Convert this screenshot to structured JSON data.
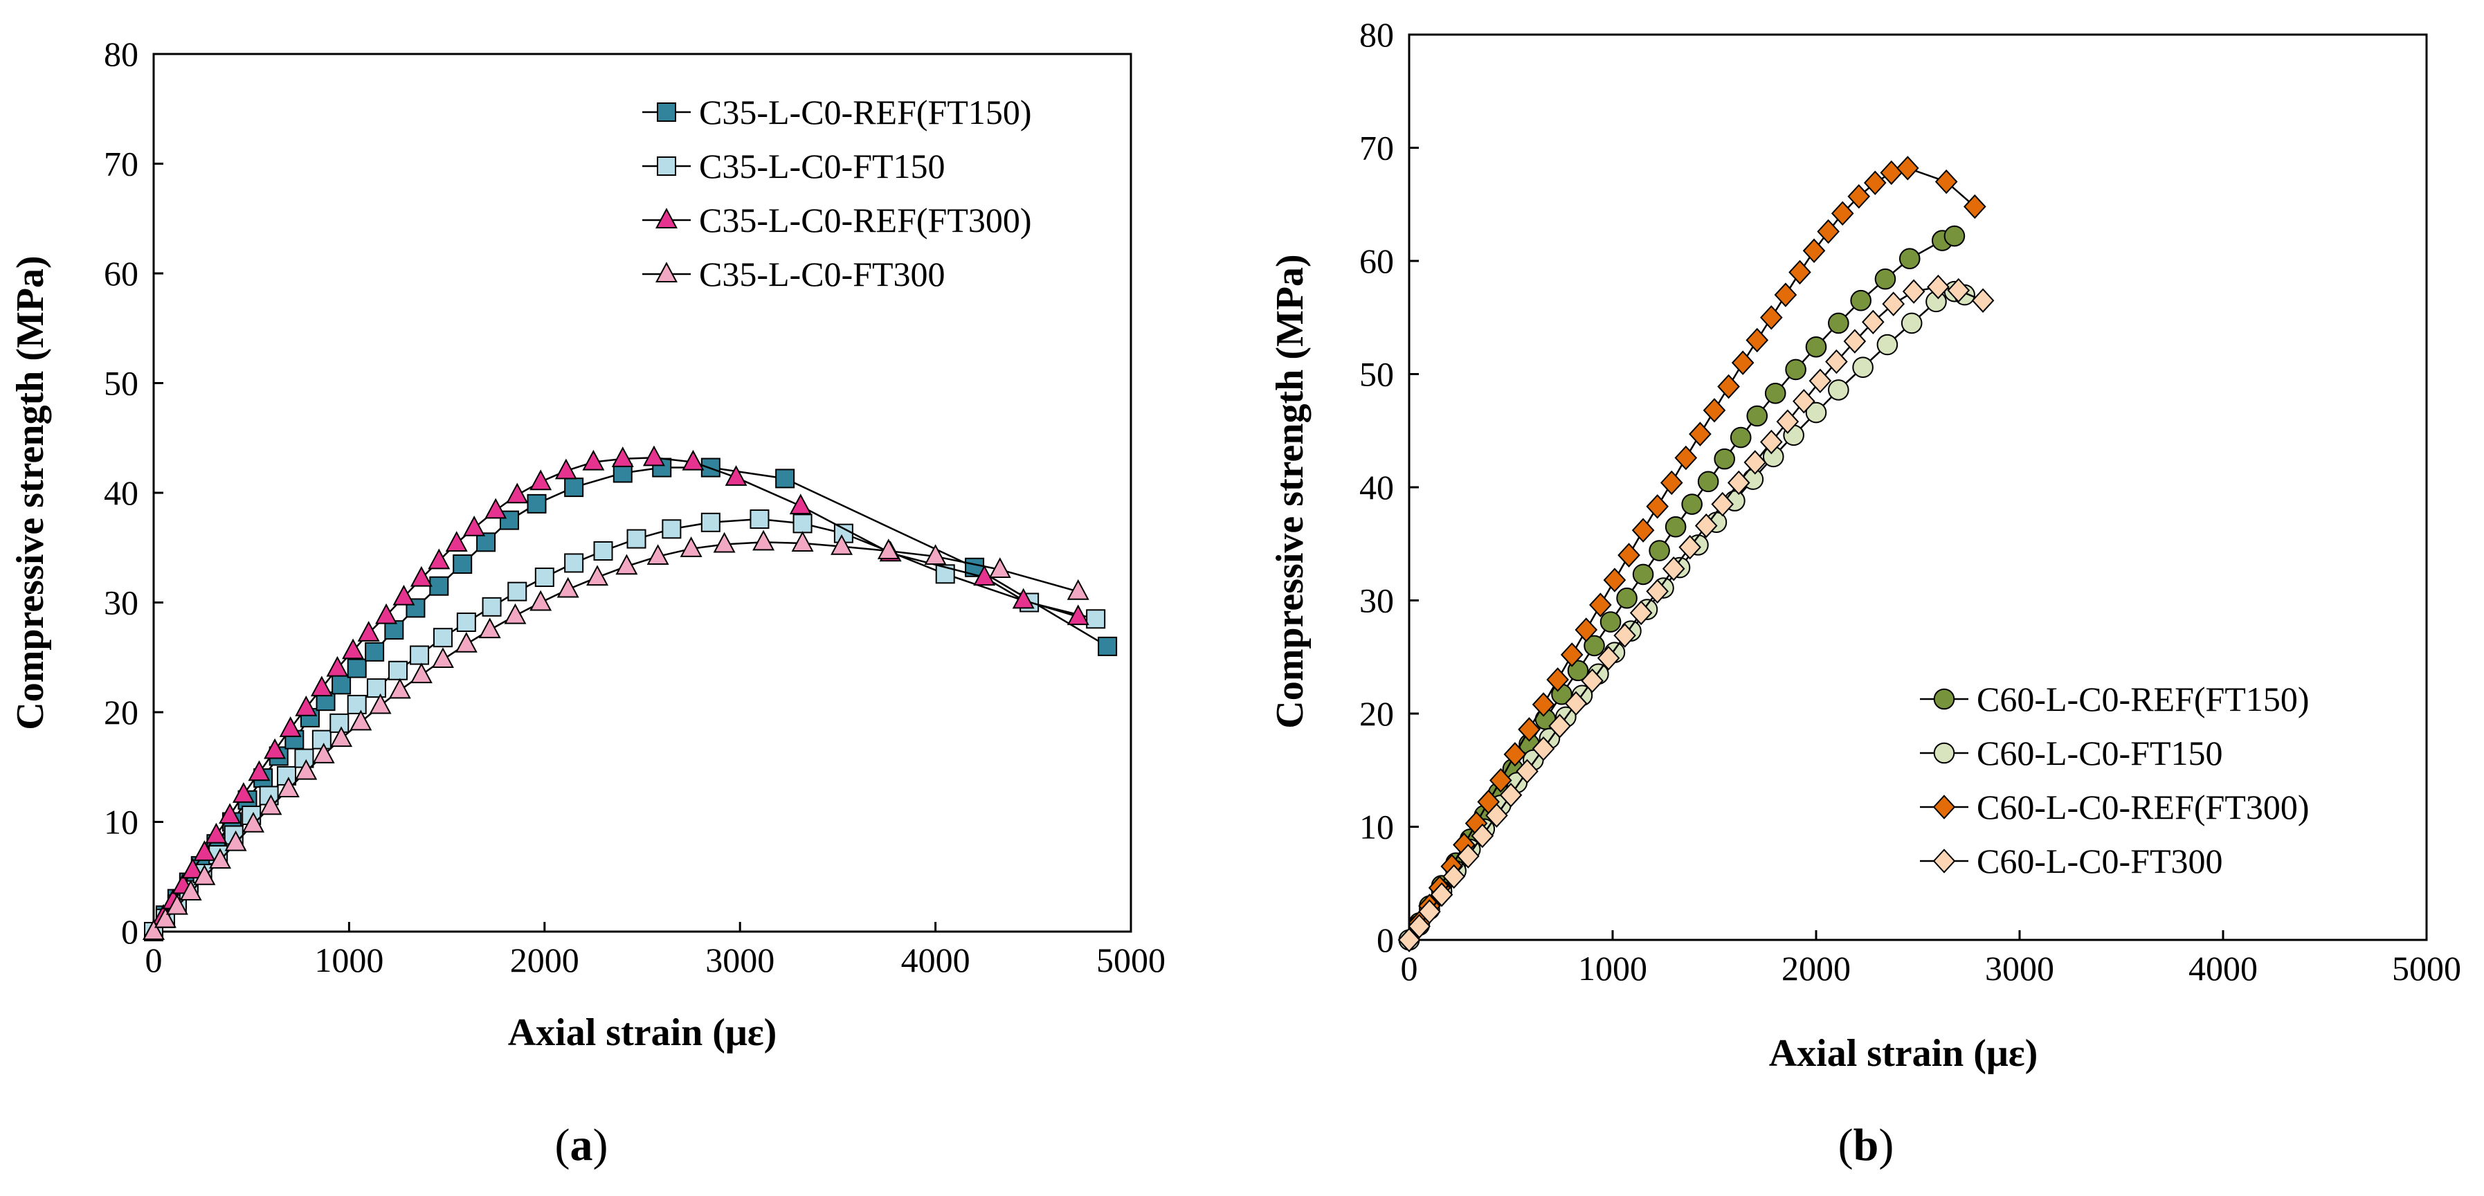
{
  "chart_data": [
    {
      "type": "line",
      "panel": "a",
      "caption_letter": "a",
      "xlabel": "Axial strain (με)",
      "ylabel": "Compressive strength (MPa)",
      "xlim": [
        0,
        5000
      ],
      "ylim": [
        0,
        80
      ],
      "xticks": [
        0,
        1000,
        2000,
        3000,
        4000,
        5000
      ],
      "yticks": [
        0,
        10,
        20,
        30,
        40,
        50,
        60,
        70,
        80
      ],
      "grid": false,
      "legend_position": "top-right",
      "series": [
        {
          "name": "C35-L-C0-REF(FT150)",
          "marker": "square",
          "color": "#31849B",
          "x": [
            0,
            60,
            120,
            180,
            240,
            320,
            400,
            480,
            560,
            640,
            720,
            800,
            880,
            960,
            1040,
            1130,
            1230,
            1340,
            1460,
            1580,
            1700,
            1820,
            1960,
            2150,
            2400,
            2600,
            2850,
            3230,
            4200,
            4880
          ],
          "y": [
            0,
            1.5,
            3.0,
            4.5,
            6.0,
            8.0,
            10.0,
            12.0,
            14.0,
            16.0,
            17.5,
            19.5,
            21.0,
            22.5,
            24.0,
            25.5,
            27.5,
            29.5,
            31.5,
            33.5,
            35.5,
            37.5,
            39.0,
            40.5,
            41.8,
            42.3,
            42.3,
            41.3,
            33.2,
            26.0
          ]
        },
        {
          "name": "C35-L-C0-FT150",
          "marker": "square",
          "color": "#B7DEE8",
          "x": [
            0,
            60,
            120,
            180,
            250,
            330,
            410,
            500,
            590,
            680,
            770,
            860,
            950,
            1040,
            1140,
            1250,
            1360,
            1480,
            1600,
            1730,
            1860,
            2000,
            2150,
            2300,
            2470,
            2650,
            2850,
            3100,
            3320,
            3530,
            4050,
            4480,
            4820
          ],
          "y": [
            0,
            1.2,
            2.5,
            3.8,
            5.3,
            7.0,
            8.8,
            10.6,
            12.4,
            14.2,
            15.8,
            17.5,
            19.0,
            20.7,
            22.2,
            23.8,
            25.2,
            26.8,
            28.2,
            29.6,
            31.0,
            32.3,
            33.6,
            34.7,
            35.8,
            36.7,
            37.3,
            37.6,
            37.2,
            36.3,
            32.6,
            30.0,
            28.5
          ]
        },
        {
          "name": "C35-L-C0-REF(FT300)",
          "marker": "triangle",
          "color": "#E6338F",
          "x": [
            0,
            50,
            100,
            150,
            200,
            260,
            320,
            390,
            460,
            540,
            620,
            700,
            780,
            860,
            940,
            1020,
            1100,
            1190,
            1280,
            1370,
            1460,
            1550,
            1640,
            1750,
            1860,
            1980,
            2110,
            2250,
            2400,
            2560,
            2760,
            2980,
            3310,
            3770,
            4250,
            4450,
            4730
          ],
          "y": [
            0,
            1.4,
            2.8,
            4.2,
            5.6,
            7.2,
            8.8,
            10.6,
            12.5,
            14.5,
            16.5,
            18.5,
            20.4,
            22.2,
            24.0,
            25.6,
            27.2,
            28.8,
            30.5,
            32.2,
            33.8,
            35.4,
            36.8,
            38.4,
            39.8,
            41.0,
            42.0,
            42.8,
            43.1,
            43.2,
            42.8,
            41.4,
            38.8,
            34.5,
            32.3,
            30.2,
            28.7
          ]
        },
        {
          "name": "C35-L-C0-FT300",
          "marker": "triangle",
          "color": "#F2A7C3",
          "x": [
            0,
            60,
            120,
            190,
            260,
            340,
            420,
            510,
            600,
            690,
            780,
            870,
            960,
            1060,
            1160,
            1260,
            1370,
            1480,
            1600,
            1720,
            1850,
            1980,
            2120,
            2270,
            2420,
            2580,
            2750,
            2920,
            3120,
            3320,
            3520,
            3760,
            4000,
            4330,
            4730
          ],
          "y": [
            0,
            1.1,
            2.3,
            3.6,
            5.0,
            6.5,
            8.1,
            9.8,
            11.4,
            13.0,
            14.6,
            16.1,
            17.6,
            19.1,
            20.6,
            22.0,
            23.4,
            24.8,
            26.2,
            27.5,
            28.8,
            30.0,
            31.2,
            32.3,
            33.3,
            34.2,
            34.9,
            35.3,
            35.5,
            35.4,
            35.1,
            34.7,
            34.2,
            33.0,
            31.0
          ]
        }
      ]
    },
    {
      "type": "line",
      "panel": "b",
      "caption_letter": "b",
      "xlabel": "Axial strain (με)",
      "ylabel": "Compressive strength (MPa)",
      "xlim": [
        0,
        5000
      ],
      "ylim": [
        0,
        80
      ],
      "xticks": [
        0,
        1000,
        2000,
        3000,
        4000,
        5000
      ],
      "yticks": [
        0,
        10,
        20,
        30,
        40,
        50,
        60,
        70,
        80
      ],
      "grid": false,
      "legend_position": "bottom-right",
      "series": [
        {
          "name": "C60-L-C0-REF(FT150)",
          "marker": "circle",
          "color": "#77933C",
          "x": [
            0,
            50,
            100,
            160,
            230,
            300,
            370,
            440,
            510,
            590,
            670,
            750,
            830,
            910,
            990,
            1070,
            1150,
            1230,
            1310,
            1390,
            1470,
            1550,
            1630,
            1710,
            1800,
            1900,
            2000,
            2110,
            2220,
            2340,
            2460,
            2620,
            2680
          ],
          "y": [
            0,
            1.5,
            3.0,
            4.8,
            6.8,
            8.9,
            11.0,
            13.0,
            15.1,
            17.3,
            19.5,
            21.7,
            23.8,
            26.0,
            28.1,
            30.2,
            32.3,
            34.4,
            36.5,
            38.5,
            40.5,
            42.5,
            44.4,
            46.3,
            48.3,
            50.4,
            52.4,
            54.5,
            56.5,
            58.4,
            60.2,
            61.8,
            62.2
          ]
        },
        {
          "name": "C60-L-C0-FT150",
          "marker": "circle",
          "color": "#D7E4BD",
          "x": [
            0,
            50,
            100,
            160,
            230,
            300,
            370,
            450,
            530,
            610,
            690,
            770,
            850,
            930,
            1010,
            1090,
            1170,
            1250,
            1330,
            1420,
            1510,
            1600,
            1690,
            1790,
            1890,
            2000,
            2110,
            2230,
            2350,
            2470,
            2590,
            2680,
            2730
          ],
          "y": [
            0,
            1.3,
            2.7,
            4.3,
            6.1,
            8.0,
            9.8,
            11.9,
            13.9,
            15.9,
            17.8,
            19.7,
            21.6,
            23.5,
            25.4,
            27.3,
            29.2,
            31.1,
            32.9,
            34.9,
            36.9,
            38.8,
            40.7,
            42.7,
            44.6,
            46.6,
            48.6,
            50.6,
            52.6,
            54.5,
            56.4,
            57.3,
            57.0
          ]
        },
        {
          "name": "C60-L-C0-REF(FT300)",
          "marker": "diamond",
          "color": "#E36C09",
          "x": [
            0,
            50,
            100,
            150,
            210,
            270,
            330,
            390,
            450,
            520,
            590,
            660,
            730,
            800,
            870,
            940,
            1010,
            1080,
            1150,
            1220,
            1290,
            1360,
            1430,
            1500,
            1570,
            1640,
            1710,
            1780,
            1850,
            1920,
            1990,
            2060,
            2130,
            2210,
            2290,
            2370,
            2450,
            2640,
            2780
          ],
          "y": [
            0,
            1.5,
            3.0,
            4.6,
            6.5,
            8.4,
            10.3,
            12.2,
            14.1,
            16.4,
            18.6,
            20.8,
            23.0,
            25.2,
            27.4,
            29.6,
            31.8,
            34.0,
            36.2,
            38.3,
            40.4,
            42.6,
            44.7,
            46.8,
            48.9,
            51.0,
            53.0,
            55.0,
            57.0,
            59.0,
            60.9,
            62.6,
            64.2,
            65.7,
            66.9,
            67.8,
            68.2,
            67.0,
            64.8
          ]
        },
        {
          "name": "C60-L-C0-FT300",
          "marker": "diamond",
          "color": "#FCD5B5",
          "x": [
            0,
            50,
            100,
            160,
            220,
            290,
            360,
            430,
            500,
            580,
            660,
            740,
            820,
            900,
            980,
            1060,
            1140,
            1220,
            1300,
            1380,
            1460,
            1540,
            1620,
            1700,
            1780,
            1860,
            1940,
            2020,
            2100,
            2190,
            2280,
            2380,
            2480,
            2600,
            2700,
            2820
          ],
          "y": [
            0,
            1.2,
            2.5,
            4.0,
            5.6,
            7.4,
            9.2,
            11.0,
            12.8,
            14.9,
            16.9,
            18.9,
            20.9,
            22.9,
            24.9,
            26.9,
            28.9,
            30.8,
            32.8,
            34.7,
            36.6,
            38.5,
            40.4,
            42.2,
            44.0,
            45.8,
            47.6,
            49.4,
            51.1,
            52.9,
            54.6,
            56.2,
            57.3,
            57.7,
            57.4,
            56.5
          ]
        }
      ]
    }
  ]
}
